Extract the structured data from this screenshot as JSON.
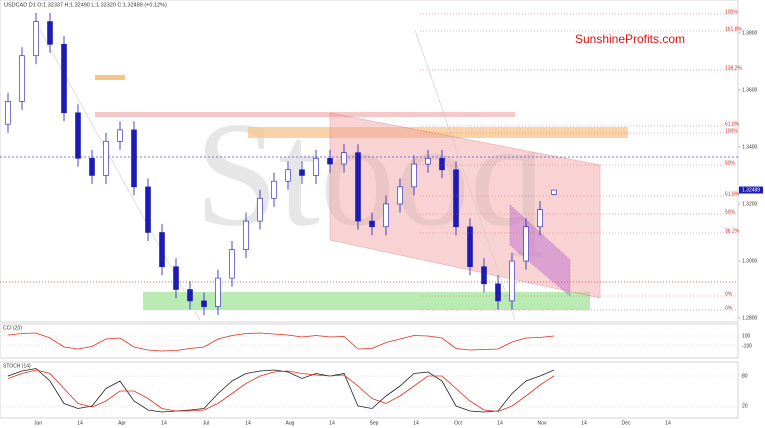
{
  "chart_data": [
    {
      "type": "candlestick",
      "title": "USDCAD  D1  O:1.32337  H:1.32490  L:1.32320  C:1.32489  (+0.12%)",
      "watermark": "Stooq",
      "brand": "SunshineProfits.com",
      "color": "#1c1cb4",
      "open": [
        1.348,
        1.356,
        1.372,
        1.384,
        1.376,
        1.352,
        1.336,
        1.33,
        1.342,
        1.346,
        1.326,
        1.31,
        1.298,
        1.29,
        1.286,
        1.284,
        1.294,
        1.304,
        1.314,
        1.322,
        1.328,
        1.332,
        1.33,
        1.336,
        1.334,
        1.338,
        1.314,
        1.312,
        1.32,
        1.326,
        1.334,
        1.336,
        1.332,
        1.312,
        1.298,
        1.292,
        1.286,
        1.3,
        1.312,
        1.32337
      ],
      "high": [
        1.359,
        1.375,
        1.387,
        1.387,
        1.379,
        1.355,
        1.339,
        1.345,
        1.349,
        1.349,
        1.329,
        1.313,
        1.301,
        1.293,
        1.289,
        1.297,
        1.307,
        1.317,
        1.325,
        1.331,
        1.335,
        1.335,
        1.339,
        1.339,
        1.341,
        1.341,
        1.317,
        1.323,
        1.329,
        1.337,
        1.339,
        1.339,
        1.335,
        1.315,
        1.301,
        1.295,
        1.303,
        1.315,
        1.321,
        1.3249
      ],
      "low": [
        1.345,
        1.353,
        1.369,
        1.373,
        1.349,
        1.333,
        1.327,
        1.327,
        1.339,
        1.323,
        1.307,
        1.295,
        1.287,
        1.283,
        1.281,
        1.281,
        1.291,
        1.301,
        1.311,
        1.319,
        1.325,
        1.327,
        1.327,
        1.331,
        1.331,
        1.311,
        1.309,
        1.309,
        1.317,
        1.323,
        1.331,
        1.329,
        1.309,
        1.295,
        1.289,
        1.283,
        1.283,
        1.297,
        1.309,
        1.3232
      ],
      "close": [
        1.356,
        1.372,
        1.384,
        1.376,
        1.352,
        1.336,
        1.33,
        1.342,
        1.346,
        1.326,
        1.31,
        1.298,
        1.29,
        1.286,
        1.284,
        1.294,
        1.304,
        1.314,
        1.322,
        1.328,
        1.332,
        1.33,
        1.336,
        1.334,
        1.338,
        1.314,
        1.312,
        1.32,
        1.326,
        1.334,
        1.336,
        1.332,
        1.312,
        1.298,
        1.292,
        1.286,
        1.3,
        1.312,
        1.318,
        1.32489
      ],
      "last_price": 1.32489,
      "ylim": [
        1.2793,
        1.3898
      ],
      "yticks": [
        {
          "value": 1.38,
          "label": "1.3800"
        },
        {
          "value": 1.36,
          "label": "1.3600"
        },
        {
          "value": 1.34,
          "label": "1.3400"
        },
        {
          "value": 1.32,
          "label": "1.3200"
        },
        {
          "value": 1.3,
          "label": "1.3000"
        },
        {
          "value": 1.28,
          "label": "1.2800"
        }
      ],
      "fib_labels": [
        "100%",
        "161.8%",
        "138.2%",
        "61.8%",
        "100%",
        "50%",
        "61.8%",
        "50%",
        "38.2%",
        "0%",
        "0%"
      ],
      "x_labels": [
        "Jun",
        "14",
        "Apr",
        "14",
        "Jul",
        "14",
        "Aug",
        "14",
        "Sep",
        "14",
        "Oct",
        "14",
        "Nov",
        "14",
        "Dec",
        "14"
      ]
    },
    {
      "type": "line",
      "title": "CCI (20)",
      "ylim": [
        -300,
        300
      ],
      "yticks": [
        100,
        -100
      ],
      "series": [
        {
          "name": "CCI",
          "color": "#e0301e",
          "values": [
            120,
            150,
            160,
            60,
            -120,
            -160,
            -110,
            40,
            60,
            -120,
            -180,
            -200,
            -190,
            -150,
            -120,
            40,
            110,
            150,
            160,
            140,
            120,
            80,
            110,
            80,
            90,
            -160,
            -150,
            -30,
            40,
            110,
            100,
            60,
            -150,
            -180,
            -170,
            -160,
            -20,
            60,
            70,
            100
          ]
        }
      ]
    },
    {
      "type": "line",
      "title": "STOCH (14)",
      "ylim": [
        0,
        100
      ],
      "yticks": [
        80,
        20
      ],
      "series": [
        {
          "name": "%K",
          "color": "#222222",
          "values": [
            80,
            90,
            95,
            70,
            25,
            15,
            20,
            55,
            70,
            30,
            12,
            8,
            10,
            12,
            15,
            45,
            70,
            85,
            90,
            92,
            88,
            75,
            85,
            80,
            85,
            20,
            15,
            40,
            60,
            85,
            88,
            70,
            20,
            10,
            8,
            10,
            45,
            70,
            80,
            92
          ]
        },
        {
          "name": "%D",
          "color": "#e0301e",
          "values": [
            75,
            85,
            92,
            85,
            55,
            25,
            18,
            30,
            50,
            50,
            35,
            15,
            10,
            10,
            12,
            25,
            45,
            65,
            80,
            88,
            90,
            85,
            82,
            80,
            82,
            60,
            35,
            25,
            40,
            60,
            80,
            80,
            55,
            30,
            12,
            9,
            20,
            40,
            62,
            80
          ]
        }
      ]
    }
  ]
}
